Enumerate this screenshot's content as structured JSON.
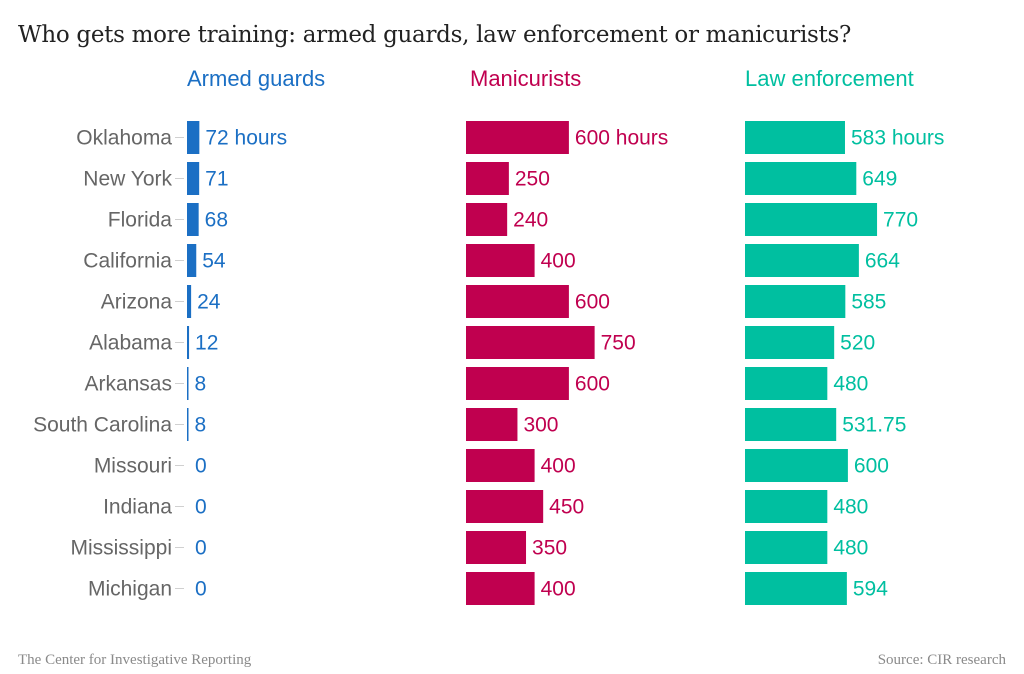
{
  "chart_data": {
    "type": "bar",
    "orientation": "horizontal",
    "title": "Who gets more training: armed guards, law enforcement or manicurists?",
    "categories": [
      "Oklahoma",
      "New York",
      "Florida",
      "California",
      "Arizona",
      "Alabama",
      "Arkansas",
      "South Carolina",
      "Missouri",
      "Indiana",
      "Mississippi",
      "Michigan"
    ],
    "unit_suffix": " hours",
    "series": [
      {
        "name": "Armed guards",
        "color": "#1b6fc4",
        "values": [
          72,
          71,
          68,
          54,
          24,
          12,
          8,
          8,
          0,
          0,
          0,
          0
        ]
      },
      {
        "name": "Manicurists",
        "color": "#c0004f",
        "values": [
          600,
          250,
          240,
          400,
          600,
          750,
          600,
          300,
          400,
          450,
          350,
          400
        ]
      },
      {
        "name": "Law enforcement",
        "color": "#00bfa0",
        "values": [
          583,
          649,
          770,
          664,
          585,
          520,
          480,
          531.75,
          600,
          480,
          480,
          594
        ]
      }
    ],
    "xlabel": "",
    "ylabel": "",
    "grid": false,
    "legend": "column headers above each panel"
  },
  "footer": {
    "credit": "The Center for Investigative Reporting",
    "source": "Source: CIR research"
  },
  "colors": {
    "title": "#222222",
    "state_label": "#666666",
    "footer": "#8a8a8a"
  }
}
